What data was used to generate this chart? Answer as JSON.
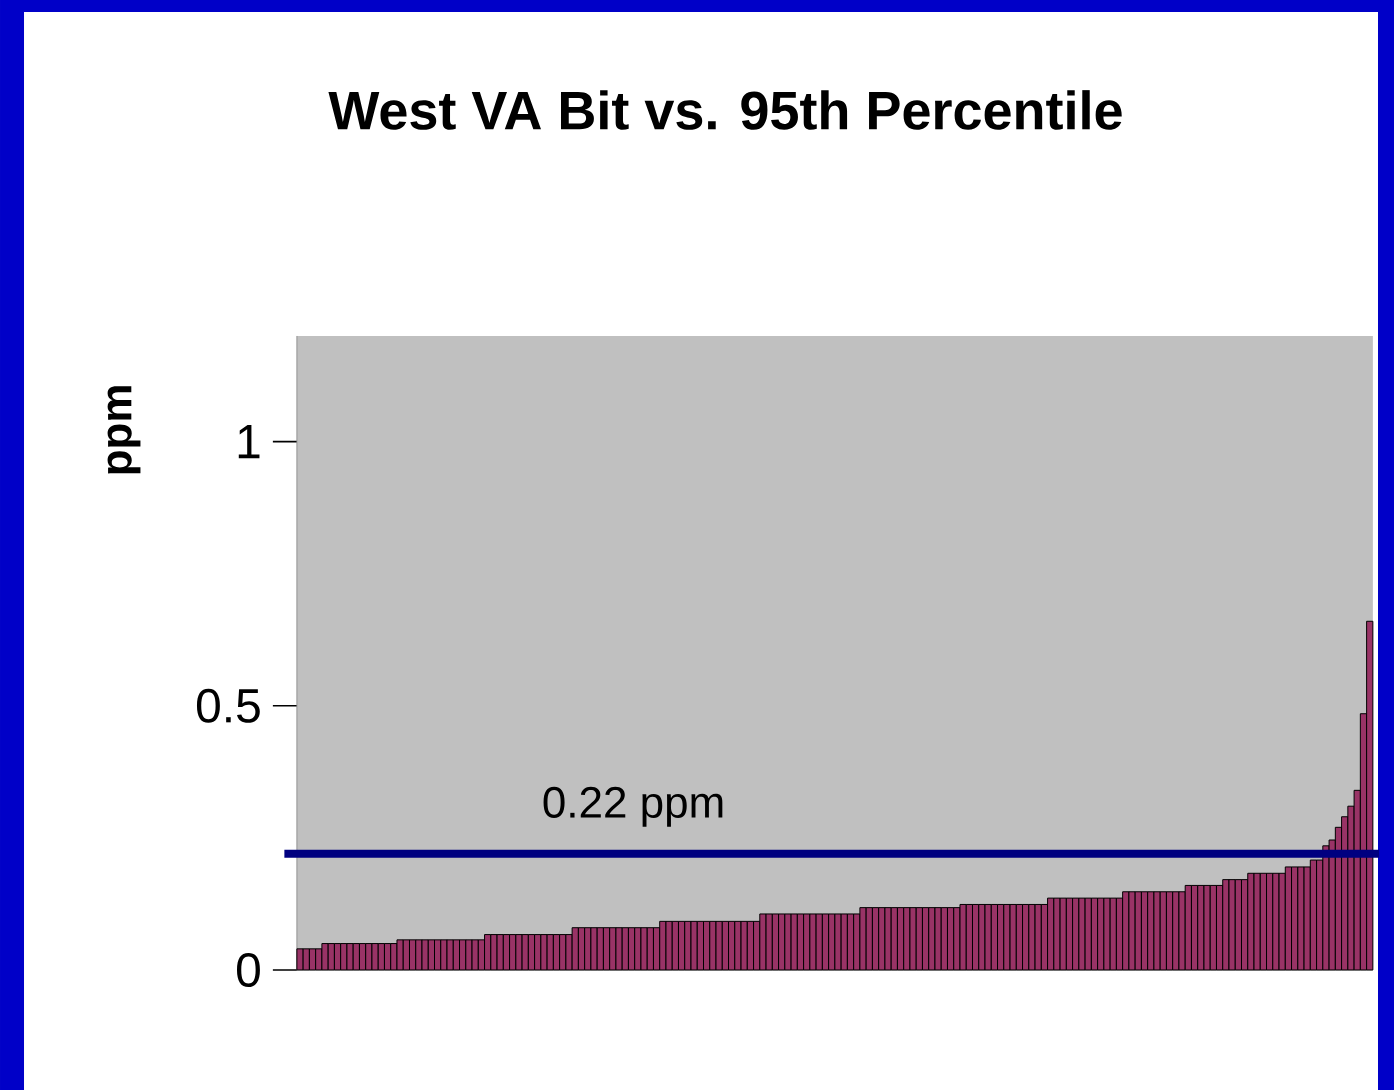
{
  "chart_data": {
    "type": "bar",
    "title": "West VA Bit vs. 95th Percentile",
    "ylabel": "ppm",
    "categories": [
      null,
      null,
      null,
      null,
      null,
      null,
      null,
      null,
      null,
      null,
      null,
      null,
      null,
      null,
      null,
      null,
      null,
      null,
      null,
      null,
      null,
      null,
      null,
      null,
      null,
      null,
      null,
      null,
      null,
      null,
      null,
      null,
      null,
      null,
      null,
      null,
      null,
      null,
      null,
      null,
      null,
      null,
      null,
      null,
      null,
      null,
      null,
      null,
      null,
      null,
      null,
      null,
      null,
      null,
      null,
      null,
      null,
      null,
      null,
      null,
      null,
      null,
      null,
      null,
      null,
      null,
      null,
      null,
      null,
      null,
      null,
      null,
      null,
      null,
      null,
      null,
      null,
      null,
      null,
      null,
      null,
      null,
      null,
      null,
      null,
      null,
      null,
      null,
      null,
      null,
      null,
      null,
      null,
      null,
      null,
      null,
      null,
      null,
      null,
      null,
      null,
      null,
      null,
      null,
      null,
      null,
      null,
      null,
      null,
      null,
      null,
      null,
      null,
      null,
      null,
      null,
      null,
      null,
      null,
      null,
      null,
      null,
      null,
      null,
      null,
      null,
      null,
      null,
      null,
      null,
      null,
      null,
      null,
      null,
      null,
      null,
      null,
      null,
      null,
      null,
      null,
      null,
      null,
      null,
      null,
      null,
      null,
      null,
      null,
      null,
      null,
      null,
      null,
      null,
      null,
      null,
      null,
      null,
      null,
      null,
      null,
      null,
      null,
      null,
      null,
      null,
      null,
      null,
      null,
      null,
      null,
      null
    ],
    "values": [
      0.04,
      0.04,
      0.04,
      0.04,
      0.05,
      0.05,
      0.05,
      0.05,
      0.05,
      0.05,
      0.05,
      0.05,
      0.05,
      0.05,
      0.05,
      0.05,
      0.057,
      0.057,
      0.057,
      0.057,
      0.057,
      0.057,
      0.057,
      0.057,
      0.057,
      0.057,
      0.057,
      0.057,
      0.057,
      0.057,
      0.067,
      0.067,
      0.067,
      0.067,
      0.067,
      0.067,
      0.067,
      0.067,
      0.067,
      0.067,
      0.067,
      0.067,
      0.067,
      0.067,
      0.08,
      0.08,
      0.08,
      0.08,
      0.08,
      0.08,
      0.08,
      0.08,
      0.08,
      0.08,
      0.08,
      0.08,
      0.08,
      0.08,
      0.092,
      0.092,
      0.092,
      0.092,
      0.092,
      0.092,
      0.092,
      0.092,
      0.092,
      0.092,
      0.092,
      0.092,
      0.092,
      0.092,
      0.092,
      0.092,
      0.106,
      0.106,
      0.106,
      0.106,
      0.106,
      0.106,
      0.106,
      0.106,
      0.106,
      0.106,
      0.106,
      0.106,
      0.106,
      0.106,
      0.106,
      0.106,
      0.118,
      0.118,
      0.118,
      0.118,
      0.118,
      0.118,
      0.118,
      0.118,
      0.118,
      0.118,
      0.118,
      0.118,
      0.118,
      0.118,
      0.118,
      0.118,
      0.124,
      0.124,
      0.124,
      0.124,
      0.124,
      0.124,
      0.124,
      0.124,
      0.124,
      0.124,
      0.124,
      0.124,
      0.124,
      0.124,
      0.136,
      0.136,
      0.136,
      0.136,
      0.136,
      0.136,
      0.136,
      0.136,
      0.136,
      0.136,
      0.136,
      0.136,
      0.148,
      0.148,
      0.148,
      0.148,
      0.148,
      0.148,
      0.148,
      0.148,
      0.148,
      0.148,
      0.16,
      0.16,
      0.16,
      0.16,
      0.16,
      0.16,
      0.171,
      0.171,
      0.171,
      0.171,
      0.183,
      0.183,
      0.183,
      0.183,
      0.183,
      0.183,
      0.195,
      0.195,
      0.195,
      0.195,
      0.208,
      0.208,
      0.235,
      0.246,
      0.27,
      0.29,
      0.31,
      0.34,
      0.485,
      0.66
    ],
    "color": "#993366",
    "ylim": [
      0,
      1.2
    ],
    "yticks": [
      0,
      0.5,
      1
    ],
    "ref_lines": [
      {
        "axis": "y",
        "value": 0.22,
        "label": "0.22 ppm",
        "color": "#000080"
      }
    ]
  }
}
